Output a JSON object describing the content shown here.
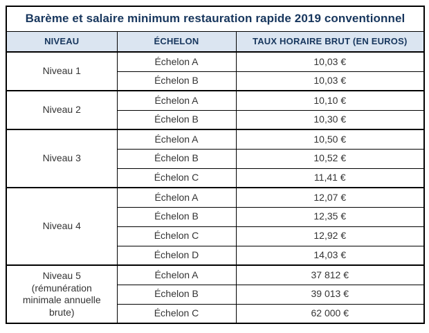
{
  "title": "Barème et salaire minimum restauration rapide 2019 conventionnel",
  "columns": [
    "NIVEAU",
    "ÉCHELON",
    "TAUX HORAIRE BRUT (EN EUROS)"
  ],
  "groups": [
    {
      "niveau": "Niveau 1",
      "rows": [
        {
          "echelon": "Échelon A",
          "taux": "10,03 €"
        },
        {
          "echelon": "Échelon B",
          "taux": "10,03 €"
        }
      ]
    },
    {
      "niveau": "Niveau 2",
      "rows": [
        {
          "echelon": "Échelon A",
          "taux": "10,10 €"
        },
        {
          "echelon": "Échelon B",
          "taux": "10,30 €"
        }
      ]
    },
    {
      "niveau": "Niveau 3",
      "rows": [
        {
          "echelon": "Échelon A",
          "taux": "10,50 €"
        },
        {
          "echelon": "Échelon B",
          "taux": "10,52 €"
        },
        {
          "echelon": "Échelon C",
          "taux": "11,41 €"
        }
      ]
    },
    {
      "niveau": "Niveau 4",
      "rows": [
        {
          "echelon": "Échelon A",
          "taux": "12,07 €"
        },
        {
          "echelon": "Échelon B",
          "taux": "12,35 €"
        },
        {
          "echelon": "Échelon C",
          "taux": "12,92 €"
        },
        {
          "echelon": "Échelon D",
          "taux": "14,03 €"
        }
      ]
    },
    {
      "niveau": "Niveau 5 (rémunération minimale annuelle brute)",
      "rows": [
        {
          "echelon": "Échelon A",
          "taux": "37 812 €"
        },
        {
          "echelon": "Échelon B",
          "taux": "39 013 €"
        },
        {
          "echelon": "Échelon C",
          "taux": "62 000 €"
        }
      ]
    }
  ],
  "colors": {
    "header_bg": "#dbe5f1",
    "heading_text": "#17365d",
    "body_text": "#333333",
    "border": "#000000"
  }
}
